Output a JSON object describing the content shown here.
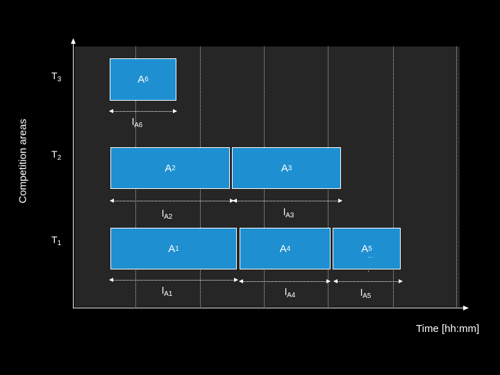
{
  "axes": {
    "y_label": "Competition areas",
    "x_label": "Time [hh:mm]"
  },
  "tracks": [
    {
      "letter": "T",
      "index": "3"
    },
    {
      "letter": "T",
      "index": "2"
    },
    {
      "letter": "T",
      "index": "1"
    }
  ],
  "blocks": [
    {
      "letter": "A",
      "index": "6"
    },
    {
      "letter": "A",
      "index": "2"
    },
    {
      "letter": "A",
      "index": "3"
    },
    {
      "letter": "A",
      "index": "1"
    },
    {
      "letter": "A",
      "index": "4"
    },
    {
      "letter": "A",
      "index": "5"
    }
  ],
  "intervals": [
    {
      "letter": "l",
      "sub": "A6"
    },
    {
      "letter": "l",
      "sub": "A2"
    },
    {
      "letter": "l",
      "sub": "A3"
    },
    {
      "letter": "l",
      "sub": "A1"
    },
    {
      "letter": "l",
      "sub": "A4"
    },
    {
      "letter": "l",
      "sub": "A5"
    }
  ],
  "colors": {
    "background": "#000000",
    "plot_area": "#262626",
    "block_fill": "#1e8fd1",
    "text": "#ffffff"
  }
}
